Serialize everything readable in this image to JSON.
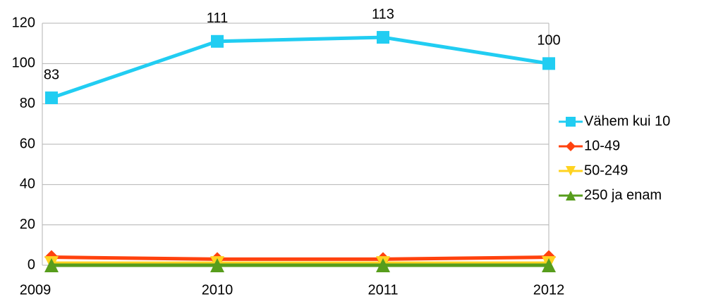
{
  "chart_data": {
    "type": "line",
    "categories": [
      "2009",
      "2010",
      "2011",
      "2012"
    ],
    "series": [
      {
        "name": "Vähem kui 10",
        "color": "#21cdf2",
        "marker": "square",
        "values": [
          83,
          111,
          113,
          100
        ],
        "data_labels": true
      },
      {
        "name": "10-49",
        "color": "#ff420e",
        "marker": "diamond",
        "values": [
          4,
          3,
          3,
          4
        ]
      },
      {
        "name": "50-249",
        "color": "#ffd320",
        "marker": "triangle-down",
        "values": [
          1,
          1,
          1,
          1
        ]
      },
      {
        "name": "250 ja enam",
        "color": "#579d1c",
        "marker": "triangle-up",
        "values": [
          0,
          0,
          0,
          0
        ]
      }
    ],
    "ylim": [
      0,
      120
    ],
    "yticks": [
      0,
      20,
      40,
      60,
      80,
      100,
      120
    ],
    "grid": true,
    "legend": "right"
  }
}
